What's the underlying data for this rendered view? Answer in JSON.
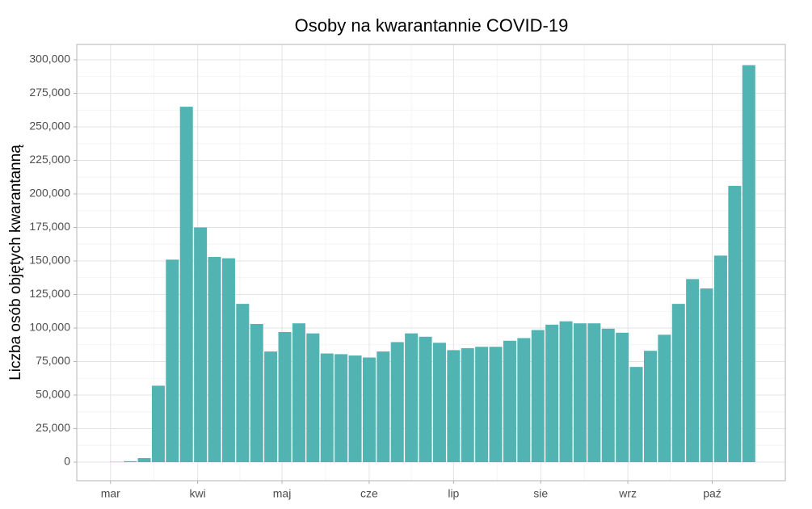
{
  "chart_data": {
    "type": "bar",
    "title": "Osoby na kwarantannie COVID-19",
    "ylabel": "Liczba osób objętych kwarantanną",
    "color": "#52b3b3",
    "grid": true,
    "x": [
      63,
      68,
      73,
      78,
      83,
      88,
      93,
      98,
      103,
      108,
      113,
      118,
      123,
      128,
      133,
      138,
      143,
      148,
      153,
      158,
      163,
      168,
      173,
      178,
      183,
      188,
      193,
      198,
      203,
      208,
      213,
      218,
      223,
      228,
      233,
      238,
      243,
      248,
      253,
      258,
      263,
      268,
      273,
      278,
      283,
      288
    ],
    "values": [
      200,
      700,
      3000,
      57000,
      151000,
      265000,
      175000,
      153000,
      152000,
      118000,
      103000,
      82500,
      97000,
      103500,
      96000,
      81000,
      80500,
      79500,
      78000,
      82500,
      89500,
      96000,
      93500,
      89000,
      83500,
      85000,
      86000,
      86000,
      90500,
      92500,
      98500,
      102500,
      105000,
      103500,
      103500,
      99500,
      96500,
      71000,
      83000,
      95000,
      118000,
      136500,
      129500,
      154000,
      206000,
      296000
    ],
    "xlim": [
      49,
      301
    ],
    "xticks": [
      {
        "value": 61,
        "label": "mar"
      },
      {
        "value": 92,
        "label": "kwi"
      },
      {
        "value": 122,
        "label": "maj"
      },
      {
        "value": 153,
        "label": "cze"
      },
      {
        "value": 183,
        "label": "lip"
      },
      {
        "value": 214,
        "label": "sie"
      },
      {
        "value": 245,
        "label": "wrz"
      },
      {
        "value": 275,
        "label": "paź"
      }
    ],
    "ylim": [
      -13855,
      311446
    ],
    "yticks": [
      0,
      {
        "value": 25000,
        "label": "25,000"
      },
      {
        "value": 50000,
        "label": "50,000"
      },
      {
        "value": 75000,
        "label": "75,000"
      },
      {
        "value": 100000,
        "label": "100,000"
      },
      {
        "value": 125000,
        "label": "125,000"
      },
      {
        "value": 150000,
        "label": "150,000"
      },
      {
        "value": 175000,
        "label": "175,000"
      },
      {
        "value": 200000,
        "label": "200,000"
      },
      {
        "value": 225000,
        "label": "225,000"
      },
      {
        "value": 250000,
        "label": "250,000"
      },
      {
        "value": 275000,
        "label": "275,000"
      },
      {
        "value": 300000,
        "label": "300,000"
      }
    ]
  }
}
